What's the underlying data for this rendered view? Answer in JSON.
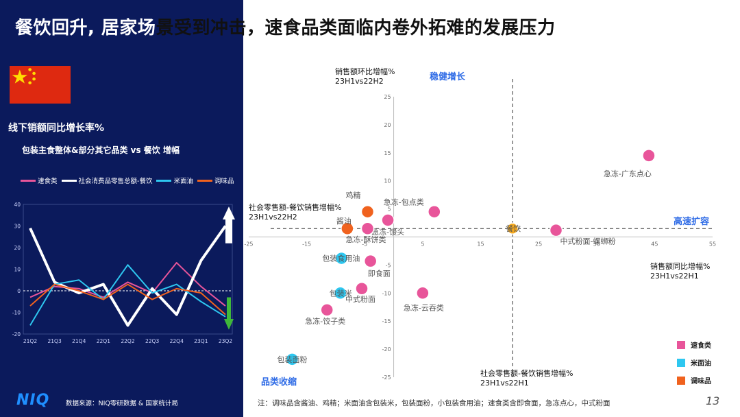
{
  "title_part1": "餐饮回升, 居家场",
  "title_part2": "景受到冲击，速食品类面临内卷外拓难的发展压力",
  "left": {
    "subtitle": "线下销额同比增长率%",
    "subtitle2": "包装主食整体&部分其它品类 vs 餐饮 增幅",
    "source": "数据来源：NIQ零研数据 & 国家统计局",
    "logo": "NIQ"
  },
  "line_chart_data": {
    "type": "line",
    "categories": [
      "21Q2",
      "21Q3",
      "21Q4",
      "22Q1",
      "22Q2",
      "22Q3",
      "22Q4",
      "23Q1",
      "23Q2"
    ],
    "ylim": [
      -20,
      40
    ],
    "yticks": [
      -20,
      -10,
      0,
      10,
      20,
      30,
      40
    ],
    "series": [
      {
        "name": "速食类",
        "color": "#e8559a",
        "values": [
          -3,
          2,
          1,
          -3,
          4,
          -1,
          13,
          2,
          -7
        ]
      },
      {
        "name": "社会消费品零售总额-餐饮",
        "color": "#ffffff",
        "values": [
          29,
          4,
          -1,
          3,
          -16,
          1,
          -11,
          14,
          30
        ]
      },
      {
        "name": "米面油",
        "color": "#2ec7f0",
        "values": [
          -16,
          3,
          5,
          -4,
          12,
          -1,
          3,
          -5,
          -12
        ]
      },
      {
        "name": "调味品",
        "color": "#f0621e",
        "values": [
          -7,
          3,
          0,
          -4,
          3,
          -4,
          1,
          -1,
          -11
        ]
      }
    ]
  },
  "chart_data": {
    "type": "scatter",
    "xlabel": "销售额同比增幅%",
    "xlabel2": "23H1vs22H1",
    "ylabel": "销售额环比增幅%",
    "ylabel2": "23H1vs22H2",
    "xlim": [
      -25,
      55
    ],
    "ylim": [
      -25,
      25
    ],
    "xticks": [
      -25,
      -15,
      -5,
      5,
      15,
      25,
      35,
      45,
      55
    ],
    "yticks": [
      -25,
      -20,
      -15,
      -10,
      -5,
      5,
      10,
      15,
      20,
      25
    ],
    "ref_x": 20.5,
    "ref_y": 1.5,
    "ref_x_label": "社会零售额-餐饮销售增幅%",
    "ref_x_label2": "23H1vs22H1",
    "ref_y_label": "社会零售额-餐饮销售增幅%",
    "ref_y_label2": "23H1vs22H2",
    "quadrants": {
      "top": "稳健增长",
      "right": "高速扩容",
      "bottom": "品类收缩"
    },
    "series": [
      {
        "name": "速食类",
        "color": "#e8559a",
        "points": [
          {
            "label": "急冻-广东点心",
            "x": 44,
            "y": 14.5
          },
          {
            "label": "急冻-包点类",
            "x": 7,
            "y": 4.5
          },
          {
            "label": "急冻-馒头",
            "x": -1,
            "y": 3
          },
          {
            "label": "急冻-酥饼类",
            "x": -4.5,
            "y": 1.5
          },
          {
            "label": "中式粉面-螺蛳粉",
            "x": 28,
            "y": 1.2
          },
          {
            "label": "即食面",
            "x": -4,
            "y": -4.3
          },
          {
            "label": "中式粉面",
            "x": -5.5,
            "y": -9.2
          },
          {
            "label": "急冻-云吞类",
            "x": 5,
            "y": -10
          },
          {
            "label": "急冻-饺子类",
            "x": -11.5,
            "y": -13
          }
        ]
      },
      {
        "name": "米面油",
        "color": "#2ec7f0",
        "points": [
          {
            "label": "包装食用油",
            "x": -9,
            "y": -3.8
          },
          {
            "label": "包装米",
            "x": -9.2,
            "y": -10
          },
          {
            "label": "包装面粉",
            "x": -17.5,
            "y": -21.8
          }
        ]
      },
      {
        "name": "调味品",
        "color": "#f0621e",
        "points": [
          {
            "label": "鸡精",
            "x": -4.5,
            "y": 4.5
          },
          {
            "label": "酱油",
            "x": -8,
            "y": 1.5
          }
        ]
      },
      {
        "name": "餐饮",
        "color": "#f4a81d",
        "points": [
          {
            "label": "餐饮",
            "x": 20.5,
            "y": 1.5
          }
        ]
      }
    ]
  },
  "legend": [
    {
      "name": "速食类",
      "color": "#e8559a"
    },
    {
      "name": "米面油",
      "color": "#2ec7f0"
    },
    {
      "name": "调味品",
      "color": "#f0621e"
    }
  ],
  "note": "注：调味品含酱油、鸡精；米面油含包装米，包装面粉，小包装食用油；速食类含即食面，急冻点心，中式粉面",
  "page": "13"
}
